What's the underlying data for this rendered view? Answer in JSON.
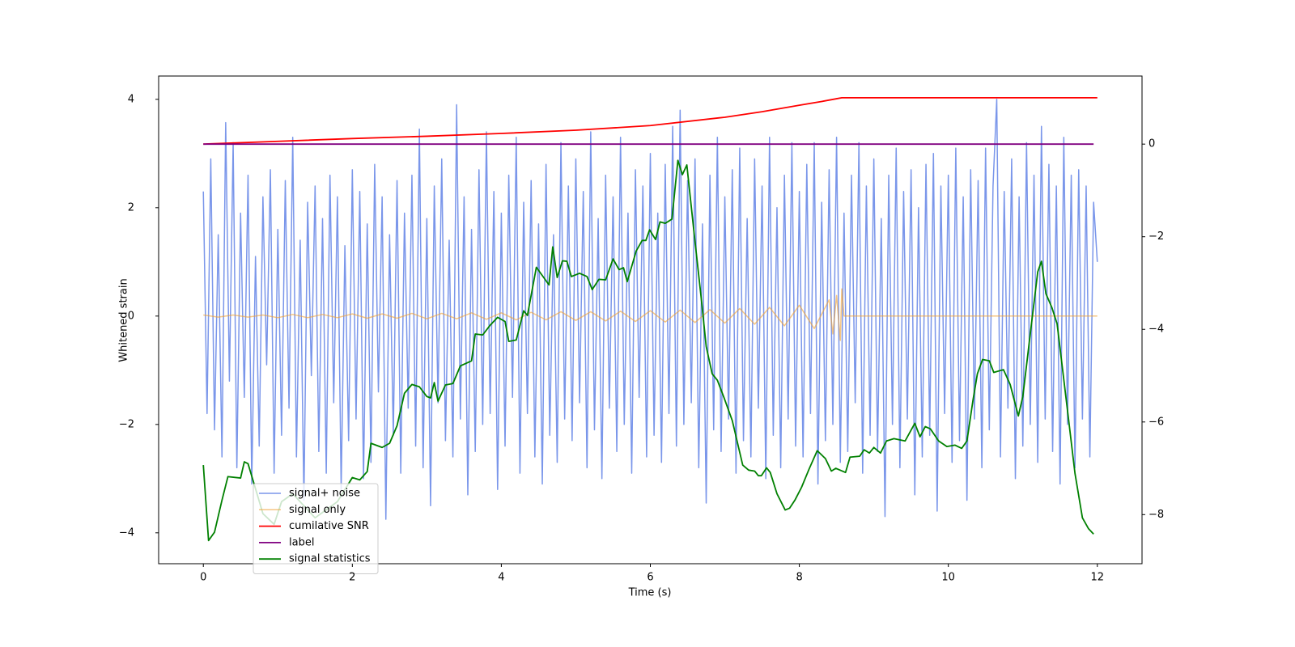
{
  "chart_data": {
    "type": "line",
    "xlabel": "Time (s)",
    "ylabel": "Whitened strain",
    "xlim": [
      -0.6,
      12.6
    ],
    "xticks": [
      0,
      2,
      4,
      6,
      8,
      10,
      12
    ],
    "ylim": [
      -4.57,
      4.43
    ],
    "yticks": [
      {
        "value": -4,
        "label": "−4"
      },
      {
        "value": -2,
        "label": "−2"
      },
      0,
      2,
      4
    ],
    "y2lim": [
      -9.06,
      1.47
    ],
    "y2ticks": [
      {
        "value": -8,
        "label": "−8"
      },
      {
        "value": -6,
        "label": "−6"
      },
      {
        "value": -4,
        "label": "−4"
      },
      {
        "value": -2,
        "label": "−2"
      },
      0
    ],
    "legend": "lower left",
    "series": [
      {
        "name": "signal+ noise",
        "color": "#4169e1",
        "x": [
          0,
          0.05,
          0.1,
          0.15,
          0.2,
          0.25,
          0.3,
          0.35,
          0.4,
          0.45,
          0.5,
          0.55,
          0.6,
          0.65,
          0.7,
          0.75,
          0.8,
          0.85,
          0.9,
          0.95,
          1,
          1.05,
          1.1,
          1.15,
          1.2,
          1.25,
          1.3,
          1.35,
          1.4,
          1.45,
          1.5,
          1.55,
          1.6,
          1.65,
          1.7,
          1.75,
          1.8,
          1.85,
          1.9,
          1.95,
          2,
          2.05,
          2.1,
          2.15,
          2.2,
          2.25,
          2.3,
          2.35,
          2.4,
          2.45,
          2.5,
          2.55,
          2.6,
          2.65,
          2.7,
          2.75,
          2.8,
          2.85,
          2.9,
          2.95,
          3,
          3.05,
          3.1,
          3.15,
          3.2,
          3.25,
          3.3,
          3.35,
          3.4,
          3.45,
          3.5,
          3.55,
          3.6,
          3.65,
          3.7,
          3.75,
          3.8,
          3.85,
          3.9,
          3.95,
          4,
          4.05,
          4.1,
          4.15,
          4.2,
          4.25,
          4.3,
          4.35,
          4.4,
          4.45,
          4.5,
          4.55,
          4.6,
          4.65,
          4.7,
          4.75,
          4.8,
          4.85,
          4.9,
          4.95,
          5,
          5.05,
          5.1,
          5.15,
          5.2,
          5.25,
          5.3,
          5.35,
          5.4,
          5.45,
          5.5,
          5.55,
          5.6,
          5.65,
          5.7,
          5.75,
          5.8,
          5.85,
          5.9,
          5.95,
          6,
          6.05,
          6.1,
          6.15,
          6.2,
          6.25,
          6.3,
          6.35,
          6.4,
          6.45,
          6.5,
          6.55,
          6.6,
          6.65,
          6.7,
          6.75,
          6.8,
          6.85,
          6.9,
          6.95,
          7,
          7.05,
          7.1,
          7.15,
          7.2,
          7.25,
          7.3,
          7.35,
          7.4,
          7.45,
          7.5,
          7.55,
          7.6,
          7.65,
          7.7,
          7.75,
          7.8,
          7.85,
          7.9,
          7.95,
          8,
          8.05,
          8.1,
          8.15,
          8.2,
          8.25,
          8.3,
          8.35,
          8.4,
          8.45,
          8.5,
          8.55,
          8.6,
          8.65,
          8.7,
          8.75,
          8.8,
          8.85,
          8.9,
          8.95,
          9,
          9.05,
          9.1,
          9.15,
          9.2,
          9.25,
          9.3,
          9.35,
          9.4,
          9.45,
          9.5,
          9.55,
          9.6,
          9.65,
          9.7,
          9.75,
          9.8,
          9.85,
          9.9,
          9.95,
          10,
          10.05,
          10.1,
          10.15,
          10.2,
          10.25,
          10.3,
          10.35,
          10.4,
          10.45,
          10.5,
          10.55,
          10.6,
          10.65,
          10.7,
          10.75,
          10.8,
          10.85,
          10.9,
          10.95,
          11,
          11.05,
          11.1,
          11.15,
          11.2,
          11.25,
          11.3,
          11.35,
          11.4,
          11.45,
          11.5,
          11.55,
          11.6,
          11.65,
          11.7,
          11.75,
          11.8,
          11.85,
          11.9,
          11.95,
          12
        ],
        "values": [
          2.3,
          -1.8,
          2.9,
          -2.1,
          1.5,
          -2.6,
          3.57,
          -1.2,
          3.2,
          -2.8,
          1.9,
          -1.5,
          2.6,
          -3.1,
          1.1,
          -2.4,
          2.2,
          -0.9,
          2.7,
          -2.9,
          1.6,
          -2.2,
          2.5,
          -1.7,
          3.3,
          -2.6,
          1.4,
          -3.4,
          2.1,
          -1.1,
          2.4,
          -2.5,
          1.8,
          -2.9,
          2.6,
          -1.6,
          2.2,
          -3.2,
          1.3,
          -2.3,
          2.7,
          -1.9,
          2.3,
          -3.0,
          1.7,
          -2.7,
          2.8,
          -1.4,
          2.2,
          -3.75,
          1.5,
          -2.2,
          2.5,
          -2.9,
          1.9,
          -1.7,
          2.6,
          -2.4,
          3.45,
          -2.8,
          1.8,
          -3.5,
          2.4,
          -1.6,
          2.9,
          -2.3,
          1.4,
          -2.6,
          3.9,
          -1.9,
          2.2,
          -3.3,
          1.6,
          -2.5,
          2.7,
          -2.0,
          3.4,
          -1.8,
          2.3,
          -3.2,
          1.9,
          -2.4,
          2.6,
          -1.5,
          3.3,
          -2.9,
          2.1,
          -1.8,
          2.5,
          -2.6,
          1.7,
          -3.1,
          2.8,
          -2.2,
          1.5,
          -2.7,
          3.2,
          -1.9,
          2.4,
          -2.3,
          2.9,
          -1.6,
          2.3,
          -2.8,
          3.4,
          -2.1,
          1.8,
          -3.0,
          2.6,
          -1.7,
          2.2,
          -2.5,
          3.3,
          -2.0,
          1.9,
          -2.9,
          2.7,
          -1.5,
          2.4,
          -2.6,
          3.0,
          -2.2,
          1.9,
          -2.7,
          2.8,
          -1.8,
          3.5,
          -2.4,
          3.8,
          -2.0,
          2.5,
          -1.6,
          2.9,
          -2.8,
          1.7,
          -3.45,
          2.6,
          -2.1,
          3.3,
          -2.5,
          2.2,
          -1.9,
          2.7,
          -2.9,
          3.1,
          -2.3,
          1.8,
          -2.6,
          2.9,
          -1.7,
          2.4,
          -3.0,
          3.3,
          -2.2,
          2.0,
          -2.8,
          2.6,
          -1.9,
          3.2,
          -2.4,
          2.3,
          -2.6,
          2.8,
          -1.8,
          3.2,
          -3.1,
          2.1,
          -2.3,
          2.7,
          -2.0,
          3.3,
          -2.7,
          1.9,
          -2.5,
          2.6,
          -1.6,
          3.2,
          -2.9,
          2.4,
          -2.2,
          2.9,
          -2.5,
          1.8,
          -3.7,
          2.6,
          -2.0,
          3.1,
          -2.8,
          2.3,
          -1.9,
          2.7,
          -3.3,
          2.0,
          -2.6,
          2.8,
          -2.2,
          3.0,
          -3.6,
          2.4,
          -1.8,
          2.6,
          -2.7,
          3.1,
          -2.3,
          2.2,
          -3.4,
          2.7,
          -1.9,
          2.5,
          -2.8,
          3.1,
          -2.1,
          2.4,
          4.0,
          -2.6,
          2.3,
          -1.7,
          2.9,
          -3.0,
          2.2,
          -2.4,
          3.2,
          -2.0,
          2.6,
          -2.7,
          3.5,
          -1.9,
          2.8,
          -2.5,
          2.4,
          -3.1,
          3.3,
          -2.0,
          2.6,
          -2.8,
          2.7,
          -1.9,
          2.4,
          -2.6,
          2.1,
          1.0
        ]
      },
      {
        "name": "signal only",
        "color": "#f0a030",
        "x": [
          0,
          0.2,
          0.4,
          0.6,
          0.8,
          1,
          1.2,
          1.4,
          1.6,
          1.8,
          2,
          2.2,
          2.4,
          2.6,
          2.8,
          3,
          3.2,
          3.4,
          3.6,
          3.8,
          4,
          4.2,
          4.4,
          4.6,
          4.8,
          5,
          5.2,
          5.4,
          5.6,
          5.8,
          6,
          6.2,
          6.4,
          6.6,
          6.8,
          7,
          7.2,
          7.4,
          7.6,
          7.8,
          8,
          8.2,
          8.4,
          8.45,
          8.5,
          8.55,
          8.57,
          8.6,
          12
        ],
        "values": [
          0.02,
          -0.02,
          0.02,
          -0.02,
          0.02,
          -0.03,
          0.03,
          -0.03,
          0.03,
          -0.03,
          0.04,
          -0.04,
          0.04,
          -0.04,
          0.05,
          -0.05,
          0.05,
          -0.05,
          0.06,
          -0.06,
          0.06,
          -0.07,
          0.07,
          -0.07,
          0.08,
          -0.08,
          0.08,
          -0.09,
          0.09,
          -0.1,
          0.1,
          -0.11,
          0.11,
          -0.12,
          0.12,
          -0.13,
          0.14,
          -0.15,
          0.16,
          -0.18,
          0.2,
          -0.23,
          0.3,
          -0.33,
          0.38,
          -0.45,
          0.5,
          0,
          0
        ]
      },
      {
        "name": "cumilative SNR",
        "color": "#ff0000",
        "axis": "y2",
        "x": [
          0,
          1,
          2,
          3,
          4,
          5,
          6,
          7,
          7.5,
          8,
          8.3,
          8.5,
          8.57,
          12
        ],
        "values": [
          0,
          0.06,
          0.12,
          0.17,
          0.23,
          0.3,
          0.4,
          0.58,
          0.7,
          0.84,
          0.92,
          0.98,
          1.0,
          1.0
        ]
      },
      {
        "name": "label",
        "color": "#800080",
        "axis": "y2",
        "x": [
          0,
          11.95
        ],
        "values": [
          0,
          0
        ]
      },
      {
        "name": "signal statistics",
        "color": "#008000",
        "axis": "y2",
        "x": [
          0,
          0.07,
          0.15,
          0.25,
          0.33,
          0.5,
          0.55,
          0.6,
          0.8,
          0.95,
          1.05,
          1.2,
          1.5,
          1.8,
          2.0,
          2.1,
          2.2,
          2.25,
          2.4,
          2.5,
          2.6,
          2.7,
          2.8,
          2.9,
          3.0,
          3.05,
          3.1,
          3.15,
          3.25,
          3.35,
          3.45,
          3.6,
          3.65,
          3.75,
          3.85,
          3.95,
          4.05,
          4.1,
          4.2,
          4.3,
          4.35,
          4.47,
          4.64,
          4.69,
          4.75,
          4.82,
          4.88,
          4.94,
          5.05,
          5.15,
          5.22,
          5.31,
          5.4,
          5.5,
          5.58,
          5.64,
          5.69,
          5.81,
          5.89,
          5.94,
          5.99,
          6.07,
          6.13,
          6.2,
          6.29,
          6.37,
          6.43,
          6.49,
          6.59,
          6.68,
          6.75,
          6.83,
          6.9,
          6.99,
          7.1,
          7.24,
          7.32,
          7.4,
          7.45,
          7.49,
          7.56,
          7.61,
          7.7,
          7.81,
          7.87,
          7.94,
          8.03,
          8.13,
          8.24,
          8.35,
          8.43,
          8.49,
          8.62,
          8.68,
          8.81,
          8.87,
          8.94,
          9.0,
          9.09,
          9.17,
          9.27,
          9.42,
          9.55,
          9.62,
          9.69,
          9.76,
          9.87,
          9.98,
          10.09,
          10.18,
          10.25,
          10.33,
          10.39,
          10.46,
          10.55,
          10.61,
          10.74,
          10.83,
          10.94,
          11.0,
          11.09,
          11.2,
          11.25,
          11.31,
          11.39,
          11.46,
          11.59,
          11.7,
          11.8,
          11.88,
          11.95
        ],
        "values": [
          -6.93,
          -8.56,
          -8.38,
          -7.69,
          -7.18,
          -7.21,
          -6.86,
          -6.9,
          -7.98,
          -8.21,
          -7.72,
          -7.55,
          -8.07,
          -7.72,
          -7.2,
          -7.25,
          -7.07,
          -6.46,
          -6.55,
          -6.46,
          -6.08,
          -5.38,
          -5.19,
          -5.24,
          -5.45,
          -5.48,
          -5.15,
          -5.55,
          -5.2,
          -5.17,
          -4.79,
          -4.68,
          -4.1,
          -4.12,
          -3.91,
          -3.74,
          -3.83,
          -4.26,
          -4.23,
          -3.6,
          -3.7,
          -2.66,
          -3.04,
          -2.22,
          -2.88,
          -2.52,
          -2.53,
          -2.86,
          -2.79,
          -2.86,
          -3.14,
          -2.92,
          -2.93,
          -2.48,
          -2.71,
          -2.67,
          -2.97,
          -2.31,
          -2.08,
          -2.08,
          -1.85,
          -2.06,
          -1.68,
          -1.71,
          -1.62,
          -0.35,
          -0.66,
          -0.45,
          -1.96,
          -3.28,
          -4.37,
          -4.96,
          -5.1,
          -5.48,
          -5.97,
          -6.93,
          -7.04,
          -7.06,
          -7.16,
          -7.16,
          -6.99,
          -7.09,
          -7.55,
          -7.9,
          -7.86,
          -7.69,
          -7.41,
          -7.02,
          -6.62,
          -6.79,
          -7.06,
          -7.0,
          -7.09,
          -6.76,
          -6.74,
          -6.6,
          -6.67,
          -6.55,
          -6.67,
          -6.41,
          -6.36,
          -6.41,
          -6.03,
          -6.32,
          -6.1,
          -6.15,
          -6.41,
          -6.53,
          -6.5,
          -6.57,
          -6.41,
          -5.54,
          -4.96,
          -4.65,
          -4.68,
          -4.93,
          -4.87,
          -5.19,
          -5.87,
          -5.45,
          -4.23,
          -2.76,
          -2.53,
          -3.23,
          -3.53,
          -3.88,
          -5.62,
          -7.11,
          -8.07,
          -8.3,
          -8.42
        ]
      }
    ]
  }
}
